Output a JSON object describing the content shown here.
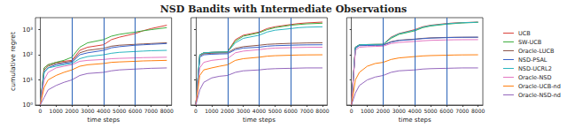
{
  "title": "NSD Bandits with Intermediate Observations",
  "chart_data": [
    {
      "type": "line",
      "ylabel": "cumulative regret",
      "xlabel": "time steps",
      "log": "y",
      "grid": false,
      "tick_labels": true,
      "xlim": [
        -300,
        8300
      ],
      "xticks": [
        0,
        1000,
        2000,
        3000,
        4000,
        5000,
        6000,
        7000,
        8000
      ],
      "ylim": [
        1,
        3000
      ],
      "yticks": [
        {
          "value": 1,
          "label": "10⁰"
        },
        {
          "value": 10,
          "label": "10¹"
        },
        {
          "value": 100,
          "label": "10²"
        },
        {
          "value": 1000,
          "label": "10³"
        }
      ],
      "vlines": [
        2000,
        4000,
        6000
      ],
      "x": [
        0,
        250,
        500,
        1000,
        1500,
        2000,
        2500,
        3000,
        4000,
        4500,
        5000,
        6000,
        6500,
        7000,
        8000
      ],
      "series": [
        {
          "name": "UCB",
          "color": "#d9413a",
          "values": [
            1,
            30,
            40,
            50,
            55,
            60,
            150,
            200,
            250,
            400,
            500,
            700,
            900,
            1100,
            1500
          ]
        },
        {
          "name": "SW-UCB",
          "color": "#3fae3f",
          "values": [
            1,
            30,
            40,
            50,
            60,
            80,
            200,
            300,
            400,
            550,
            650,
            800,
            900,
            1000,
            1200
          ]
        },
        {
          "name": "Oracle-LUCB",
          "color": "#8c564b",
          "values": [
            1,
            25,
            35,
            45,
            50,
            55,
            120,
            150,
            180,
            220,
            240,
            260,
            270,
            280,
            300
          ]
        },
        {
          "name": "NSD-PSAL",
          "color": "#3a62c8",
          "values": [
            1,
            20,
            30,
            40,
            45,
            50,
            100,
            120,
            150,
            190,
            210,
            240,
            250,
            260,
            280
          ]
        },
        {
          "name": "NSD-UCRL2",
          "color": "#2bb5c0",
          "values": [
            1,
            20,
            30,
            35,
            40,
            45,
            70,
            85,
            100,
            115,
            125,
            135,
            140,
            145,
            150
          ]
        },
        {
          "name": "Oracle-NSD",
          "color": "#e377c2",
          "values": [
            1,
            10,
            20,
            30,
            35,
            40,
            55,
            60,
            65,
            70,
            72,
            75,
            77,
            78,
            80
          ]
        },
        {
          "name": "Oracle-UCB-nd",
          "color": "#ff7f0e",
          "values": [
            1,
            5,
            10,
            15,
            20,
            25,
            35,
            40,
            45,
            50,
            52,
            55,
            57,
            58,
            60
          ]
        },
        {
          "name": "Oracle-NSD-nd",
          "color": "#9467bd",
          "values": [
            1,
            2,
            4,
            6,
            8,
            10,
            15,
            18,
            20,
            23,
            25,
            27,
            28,
            29,
            30
          ]
        }
      ]
    },
    {
      "type": "line",
      "xlabel": "time steps",
      "log": "y",
      "grid": false,
      "tick_labels": "x",
      "xlim": [
        -300,
        8300
      ],
      "xticks": [
        0,
        1000,
        2000,
        3000,
        4000,
        5000,
        6000,
        7000,
        8000
      ],
      "ylim": [
        1,
        3000
      ],
      "yticks": [
        {
          "value": 1,
          "label": "10⁰"
        },
        {
          "value": 10,
          "label": "10¹"
        },
        {
          "value": 100,
          "label": "10²"
        },
        {
          "value": 1000,
          "label": "10³"
        }
      ],
      "vlines": [
        2000,
        4000,
        6000
      ],
      "x": [
        0,
        250,
        500,
        1000,
        1500,
        2000,
        2500,
        3000,
        4000,
        4500,
        5000,
        6000,
        6500,
        7000,
        8000
      ],
      "series": [
        {
          "name": "UCB",
          "color": "#d9413a",
          "values": [
            1,
            100,
            120,
            125,
            128,
            130,
            400,
            600,
            800,
            1100,
            1300,
            1600,
            1750,
            1850,
            2000
          ]
        },
        {
          "name": "SW-UCB",
          "color": "#3fae3f",
          "values": [
            1,
            100,
            120,
            125,
            128,
            130,
            350,
            550,
            750,
            1000,
            1200,
            1500,
            1600,
            1700,
            1800
          ]
        },
        {
          "name": "Oracle-LUCB",
          "color": "#8c564b",
          "values": [
            1,
            90,
            110,
            115,
            118,
            120,
            180,
            210,
            240,
            260,
            270,
            285,
            290,
            295,
            300
          ]
        },
        {
          "name": "NSD-PSAL",
          "color": "#3a62c8",
          "values": [
            1,
            80,
            100,
            105,
            108,
            110,
            160,
            185,
            200,
            220,
            230,
            240,
            245,
            248,
            250
          ]
        },
        {
          "name": "NSD-UCRL2",
          "color": "#2bb5c0",
          "values": [
            1,
            100,
            120,
            125,
            128,
            130,
            300,
            450,
            600,
            800,
            950,
            1100,
            1200,
            1250,
            1300
          ]
        },
        {
          "name": "Oracle-NSD",
          "color": "#e377c2",
          "values": [
            1,
            30,
            50,
            60,
            65,
            70,
            120,
            140,
            160,
            175,
            185,
            192,
            195,
            198,
            200
          ]
        },
        {
          "name": "Oracle-UCB-nd",
          "color": "#ff7f0e",
          "values": [
            1,
            15,
            25,
            30,
            35,
            40,
            60,
            70,
            80,
            88,
            92,
            96,
            98,
            99,
            100
          ]
        },
        {
          "name": "Oracle-NSD-nd",
          "color": "#9467bd",
          "values": [
            1,
            4,
            8,
            12,
            14,
            15,
            20,
            23,
            25,
            27,
            28,
            29,
            29.5,
            30,
            30
          ]
        }
      ]
    },
    {
      "type": "line",
      "xlabel": "time steps",
      "log": "y",
      "grid": false,
      "tick_labels": "x",
      "legend": "right",
      "xlim": [
        -300,
        8300
      ],
      "xticks": [
        0,
        1000,
        2000,
        3000,
        4000,
        5000,
        6000,
        7000,
        8000
      ],
      "ylim": [
        1,
        3000
      ],
      "yticks": [
        {
          "value": 1,
          "label": "10⁰"
        },
        {
          "value": 10,
          "label": "10¹"
        },
        {
          "value": 100,
          "label": "10²"
        },
        {
          "value": 1000,
          "label": "10³"
        }
      ],
      "vlines": [
        2000,
        4000,
        6000
      ],
      "x": [
        0,
        250,
        500,
        1000,
        1500,
        2000,
        2500,
        3000,
        4000,
        4500,
        5000,
        6000,
        6500,
        7000,
        8000
      ],
      "series": [
        {
          "name": "UCB",
          "color": "#d9413a",
          "values": [
            1,
            200,
            250,
            255,
            258,
            260,
            500,
            700,
            1000,
            1300,
            1500,
            1750,
            1850,
            1900,
            2000
          ]
        },
        {
          "name": "SW-UCB",
          "color": "#3fae3f",
          "values": [
            1,
            200,
            250,
            255,
            258,
            260,
            450,
            650,
            900,
            1200,
            1400,
            1650,
            1750,
            1850,
            1950
          ]
        },
        {
          "name": "Oracle-LUCB",
          "color": "#8c564b",
          "values": [
            1,
            190,
            240,
            245,
            248,
            250,
            330,
            380,
            420,
            450,
            470,
            490,
            495,
            498,
            500
          ]
        },
        {
          "name": "NSD-PSAL",
          "color": "#3a62c8",
          "values": [
            1,
            180,
            230,
            235,
            238,
            240,
            320,
            370,
            410,
            440,
            460,
            480,
            490,
            495,
            500
          ]
        },
        {
          "name": "NSD-UCRL2",
          "color": "#2bb5c0",
          "values": [
            1,
            200,
            250,
            255,
            258,
            260,
            480,
            680,
            950,
            1250,
            1450,
            1700,
            1800,
            1880,
            1980
          ]
        },
        {
          "name": "Oracle-NSD",
          "color": "#e377c2",
          "values": [
            1,
            150,
            200,
            210,
            215,
            220,
            280,
            310,
            340,
            360,
            375,
            390,
            395,
            398,
            400
          ]
        },
        {
          "name": "Oracle-UCB-nd",
          "color": "#ff7f0e",
          "values": [
            1,
            10,
            20,
            35,
            45,
            50,
            65,
            75,
            85,
            90,
            93,
            96,
            98,
            99,
            100
          ]
        },
        {
          "name": "Oracle-NSD-nd",
          "color": "#9467bd",
          "values": [
            1,
            3,
            6,
            10,
            13,
            15,
            20,
            23,
            25,
            27,
            28,
            29,
            29.5,
            30,
            30
          ]
        }
      ]
    }
  ]
}
